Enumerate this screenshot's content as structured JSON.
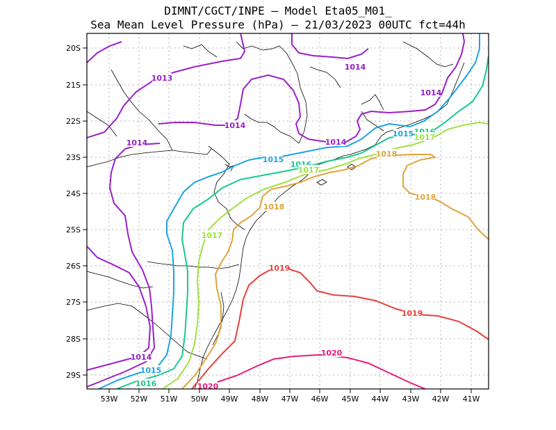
{
  "title": {
    "line1": "DIMNT/CGCT/INPE –  Model Eta05_M01_",
    "line2": "Sea Mean Level Pressure (hPa) – 21/03/2023 00UTC fct=44h"
  },
  "axes": {
    "lon_labels": [
      "53W",
      "52W",
      "51W",
      "50W",
      "49W",
      "48W",
      "47W",
      "46W",
      "45W",
      "44W",
      "43W",
      "42W",
      "41W"
    ],
    "lat_labels": [
      "20S",
      "21S",
      "22S",
      "23S",
      "24S",
      "25S",
      "26S",
      "27S",
      "28S",
      "29S"
    ]
  },
  "contour_colors": {
    "1013": "#9a1fc9",
    "1014": "#9a1fc9",
    "1015": "#1aa3e6",
    "1016": "#18c98a",
    "1017": "#a0e040",
    "1018": "#e0a43a",
    "1019": "#e8403a",
    "1020": "#e81a7a"
  },
  "contour_labels": [
    {
      "text": "1013",
      "level": "1013"
    },
    {
      "text": "1014",
      "level": "1014"
    },
    {
      "text": "1014",
      "level": "1014"
    },
    {
      "text": "1014",
      "level": "1014"
    },
    {
      "text": "1014",
      "level": "1014"
    },
    {
      "text": "1014",
      "level": "1014"
    },
    {
      "text": "1014",
      "level": "1014"
    },
    {
      "text": "1015",
      "level": "1015"
    },
    {
      "text": "1015",
      "level": "1015"
    },
    {
      "text": "1015",
      "level": "1015"
    },
    {
      "text": "1016",
      "level": "1016"
    },
    {
      "text": "1016",
      "level": "1016"
    },
    {
      "text": "1016",
      "level": "1016"
    },
    {
      "text": "1017",
      "level": "1017"
    },
    {
      "text": "1017",
      "level": "1017"
    },
    {
      "text": "1017",
      "level": "1017"
    },
    {
      "text": "1018",
      "level": "1018"
    },
    {
      "text": "1018",
      "level": "1018"
    },
    {
      "text": "1018",
      "level": "1018"
    },
    {
      "text": "1019",
      "level": "1019"
    },
    {
      "text": "1019",
      "level": "1019"
    },
    {
      "text": "1020",
      "level": "1020"
    },
    {
      "text": "1020",
      "level": "1020"
    }
  ]
}
